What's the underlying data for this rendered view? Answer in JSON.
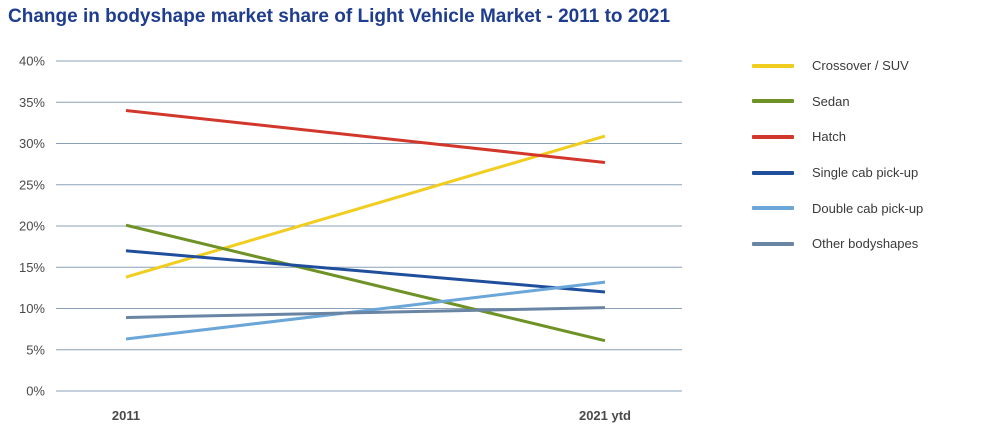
{
  "title": "Change in bodyshape market share of Light Vehicle Market - 2011 to 2021",
  "colors": {
    "title": "#1f3d8f",
    "grid": "#8aa0b8"
  },
  "chart_data": {
    "type": "line",
    "title": "Change in bodyshape market share of Light Vehicle Market - 2011 to 2021",
    "xlabel": "",
    "ylabel": "",
    "x": [
      "2011",
      "2021 ytd"
    ],
    "ylim": [
      0,
      40
    ],
    "yticks": [
      "0%",
      "5%",
      "10%",
      "15%",
      "20%",
      "25%",
      "30%",
      "35%",
      "40%"
    ],
    "grid": true,
    "legend_position": "right",
    "series": [
      {
        "name": "Crossover / SUV",
        "color": "#f0cd1e",
        "values": [
          13.8,
          30.9
        ]
      },
      {
        "name": "Sedan",
        "color": "#6e9225",
        "values": [
          20.1,
          6.1
        ]
      },
      {
        "name": "Hatch",
        "color": "#d2372b",
        "values": [
          34.0,
          27.7
        ]
      },
      {
        "name": "Single cab pick-up",
        "color": "#1f4f9c",
        "values": [
          17.0,
          12.0
        ]
      },
      {
        "name": "Double cab pick-up",
        "color": "#6aa6d8",
        "values": [
          6.3,
          13.2
        ]
      },
      {
        "name": "Other bodyshapes",
        "color": "#6a85a3",
        "values": [
          8.9,
          10.1
        ]
      }
    ]
  }
}
